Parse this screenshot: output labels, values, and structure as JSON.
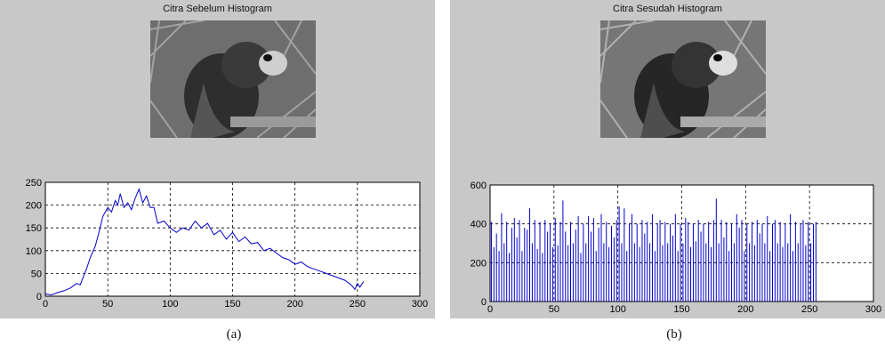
{
  "panels": [
    {
      "title": "Citra Sebelum Histogram",
      "caption": "(a)"
    },
    {
      "title": "Citra Sesudah Histogram",
      "caption": "(b)"
    }
  ],
  "colors": {
    "panel_bg": "#c8c8c8",
    "plot_bg": "#ffffff",
    "line": "#0000cc",
    "grid": "#000000"
  },
  "chart_data": [
    {
      "type": "line",
      "title": "",
      "xlabel": "",
      "ylabel": "",
      "xlim": [
        0,
        300
      ],
      "ylim": [
        0,
        250
      ],
      "xticks": [
        0,
        50,
        100,
        150,
        200,
        250,
        300
      ],
      "yticks": [
        0,
        50,
        100,
        150,
        200,
        250
      ],
      "grid": true,
      "series": [
        {
          "x": [
            0,
            5,
            10,
            15,
            20,
            25,
            28,
            30,
            33,
            36,
            40,
            43,
            46,
            50,
            53,
            56,
            58,
            60,
            63,
            66,
            69,
            72,
            75,
            78,
            81,
            84,
            87,
            90,
            95,
            100,
            105,
            110,
            115,
            120,
            125,
            130,
            135,
            140,
            145,
            150,
            155,
            160,
            165,
            170,
            175,
            180,
            185,
            190,
            195,
            200,
            205,
            210,
            215,
            220,
            225,
            230,
            235,
            240,
            245,
            248,
            250,
            252,
            255
          ],
          "y": [
            5,
            3,
            8,
            12,
            18,
            28,
            25,
            40,
            60,
            85,
            110,
            140,
            175,
            195,
            185,
            210,
            200,
            225,
            195,
            205,
            190,
            215,
            235,
            205,
            220,
            195,
            195,
            160,
            165,
            150,
            140,
            150,
            145,
            165,
            150,
            160,
            135,
            145,
            125,
            140,
            120,
            130,
            115,
            118,
            100,
            105,
            95,
            85,
            80,
            70,
            75,
            65,
            60,
            55,
            50,
            45,
            40,
            35,
            25,
            15,
            28,
            20,
            32
          ]
        }
      ]
    },
    {
      "type": "bar",
      "title": "",
      "xlabel": "",
      "ylabel": "",
      "xlim": [
        0,
        300
      ],
      "ylim": [
        0,
        600
      ],
      "xticks": [
        0,
        50,
        100,
        150,
        200,
        250,
        300
      ],
      "yticks": [
        0,
        200,
        400,
        600
      ],
      "grid": true,
      "series": [
        {
          "x": [
            1,
            3,
            5,
            7,
            9,
            11,
            13,
            15,
            17,
            19,
            21,
            23,
            25,
            27,
            29,
            31,
            33,
            35,
            37,
            39,
            41,
            43,
            45,
            47,
            49,
            51,
            53,
            55,
            57,
            59,
            61,
            63,
            65,
            67,
            69,
            71,
            73,
            75,
            77,
            79,
            81,
            83,
            85,
            87,
            89,
            91,
            93,
            95,
            97,
            99,
            101,
            103,
            105,
            107,
            109,
            111,
            113,
            115,
            117,
            119,
            121,
            123,
            125,
            127,
            129,
            131,
            133,
            135,
            137,
            139,
            141,
            143,
            145,
            147,
            149,
            151,
            153,
            155,
            157,
            159,
            161,
            163,
            165,
            167,
            169,
            171,
            173,
            175,
            177,
            179,
            181,
            183,
            185,
            187,
            189,
            191,
            193,
            195,
            197,
            199,
            201,
            203,
            205,
            207,
            209,
            211,
            213,
            215,
            217,
            219,
            221,
            223,
            225,
            227,
            229,
            231,
            233,
            235,
            237,
            239,
            241,
            243,
            245,
            247,
            249,
            251,
            253,
            255
          ],
          "y": [
            410,
            280,
            350,
            260,
            455,
            300,
            410,
            250,
            380,
            430,
            330,
            420,
            260,
            380,
            370,
            480,
            300,
            420,
            270,
            410,
            250,
            420,
            360,
            400,
            280,
            430,
            290,
            410,
            520,
            360,
            290,
            410,
            300,
            370,
            440,
            250,
            400,
            300,
            440,
            360,
            430,
            260,
            380,
            450,
            300,
            410,
            280,
            390,
            330,
            420,
            490,
            300,
            480,
            260,
            400,
            450,
            300,
            400,
            280,
            420,
            350,
            410,
            300,
            450,
            260,
            400,
            420,
            290,
            410,
            300,
            400,
            340,
            450,
            260,
            400,
            300,
            430,
            410,
            280,
            400,
            310,
            420,
            360,
            400,
            300,
            410,
            280,
            420,
            530,
            300,
            420,
            330,
            410,
            260,
            400,
            300,
            450,
            380,
            420,
            260,
            400,
            300,
            410,
            290,
            420,
            350,
            400,
            300,
            440,
            260,
            400,
            420,
            300,
            410,
            280,
            400,
            300,
            450,
            260,
            410,
            300,
            400,
            420,
            290,
            410,
            300,
            400,
            410
          ]
        }
      ]
    }
  ]
}
